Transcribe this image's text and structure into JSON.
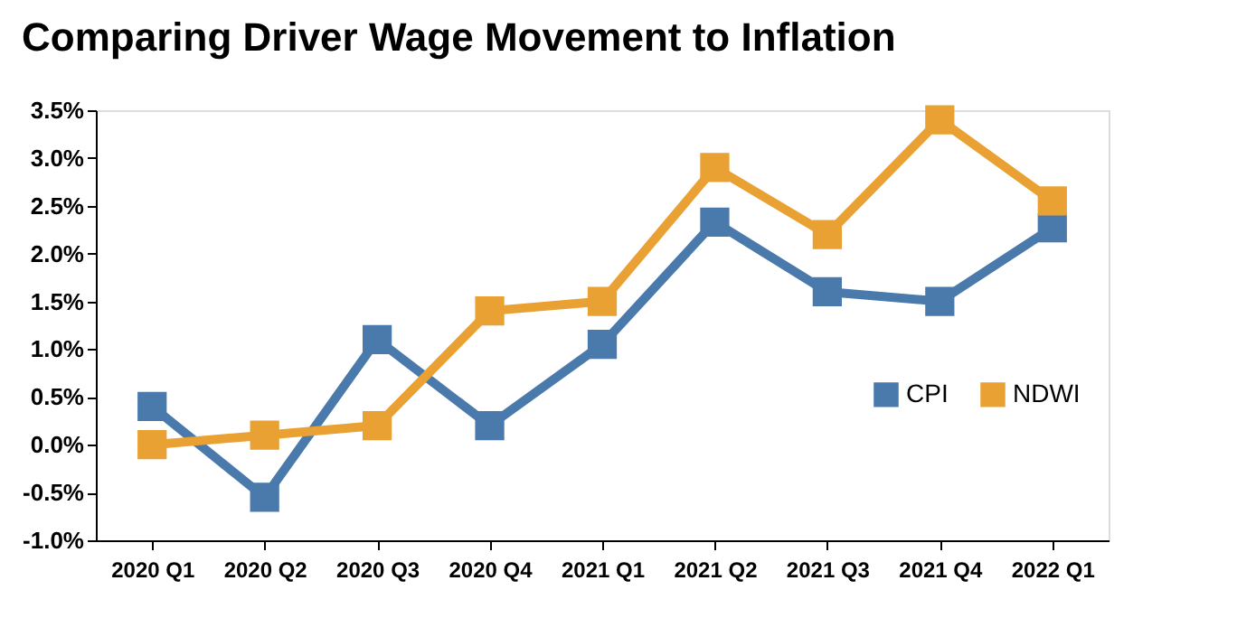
{
  "chart_data": {
    "type": "line",
    "title": "Comparing Driver Wage Movement to Inflation",
    "categories": [
      "2020 Q1",
      "2020 Q2",
      "2020 Q3",
      "2020 Q4",
      "2021 Q1",
      "2021 Q2",
      "2021 Q3",
      "2021 Q4",
      "2022 Q1"
    ],
    "series": [
      {
        "name": "CPI",
        "color": "#4a7aab",
        "values": [
          0.4,
          -0.55,
          1.1,
          0.2,
          1.05,
          2.33,
          1.6,
          1.5,
          2.27
        ]
      },
      {
        "name": "NDWI",
        "color": "#e9a134",
        "values": [
          0.0,
          0.1,
          0.2,
          1.4,
          1.5,
          2.9,
          2.2,
          3.4,
          2.55
        ]
      }
    ],
    "ylim": [
      -1.0,
      3.5
    ],
    "yticks": [
      {
        "value": -1.0,
        "label": "-1.0%"
      },
      {
        "value": -0.5,
        "label": "-0.5%"
      },
      {
        "value": 0.0,
        "label": "0.0%"
      },
      {
        "value": 0.5,
        "label": "0.5%"
      },
      {
        "value": 1.0,
        "label": "1.0%"
      },
      {
        "value": 1.5,
        "label": "1.5%"
      },
      {
        "value": 2.0,
        "label": "2.0%"
      },
      {
        "value": 2.5,
        "label": "2.5%"
      },
      {
        "value": 3.0,
        "label": "3.0%"
      },
      {
        "value": 3.5,
        "label": "3.5%"
      }
    ],
    "marker": "square",
    "line_style": "solid",
    "grid": false,
    "legend": "right"
  }
}
